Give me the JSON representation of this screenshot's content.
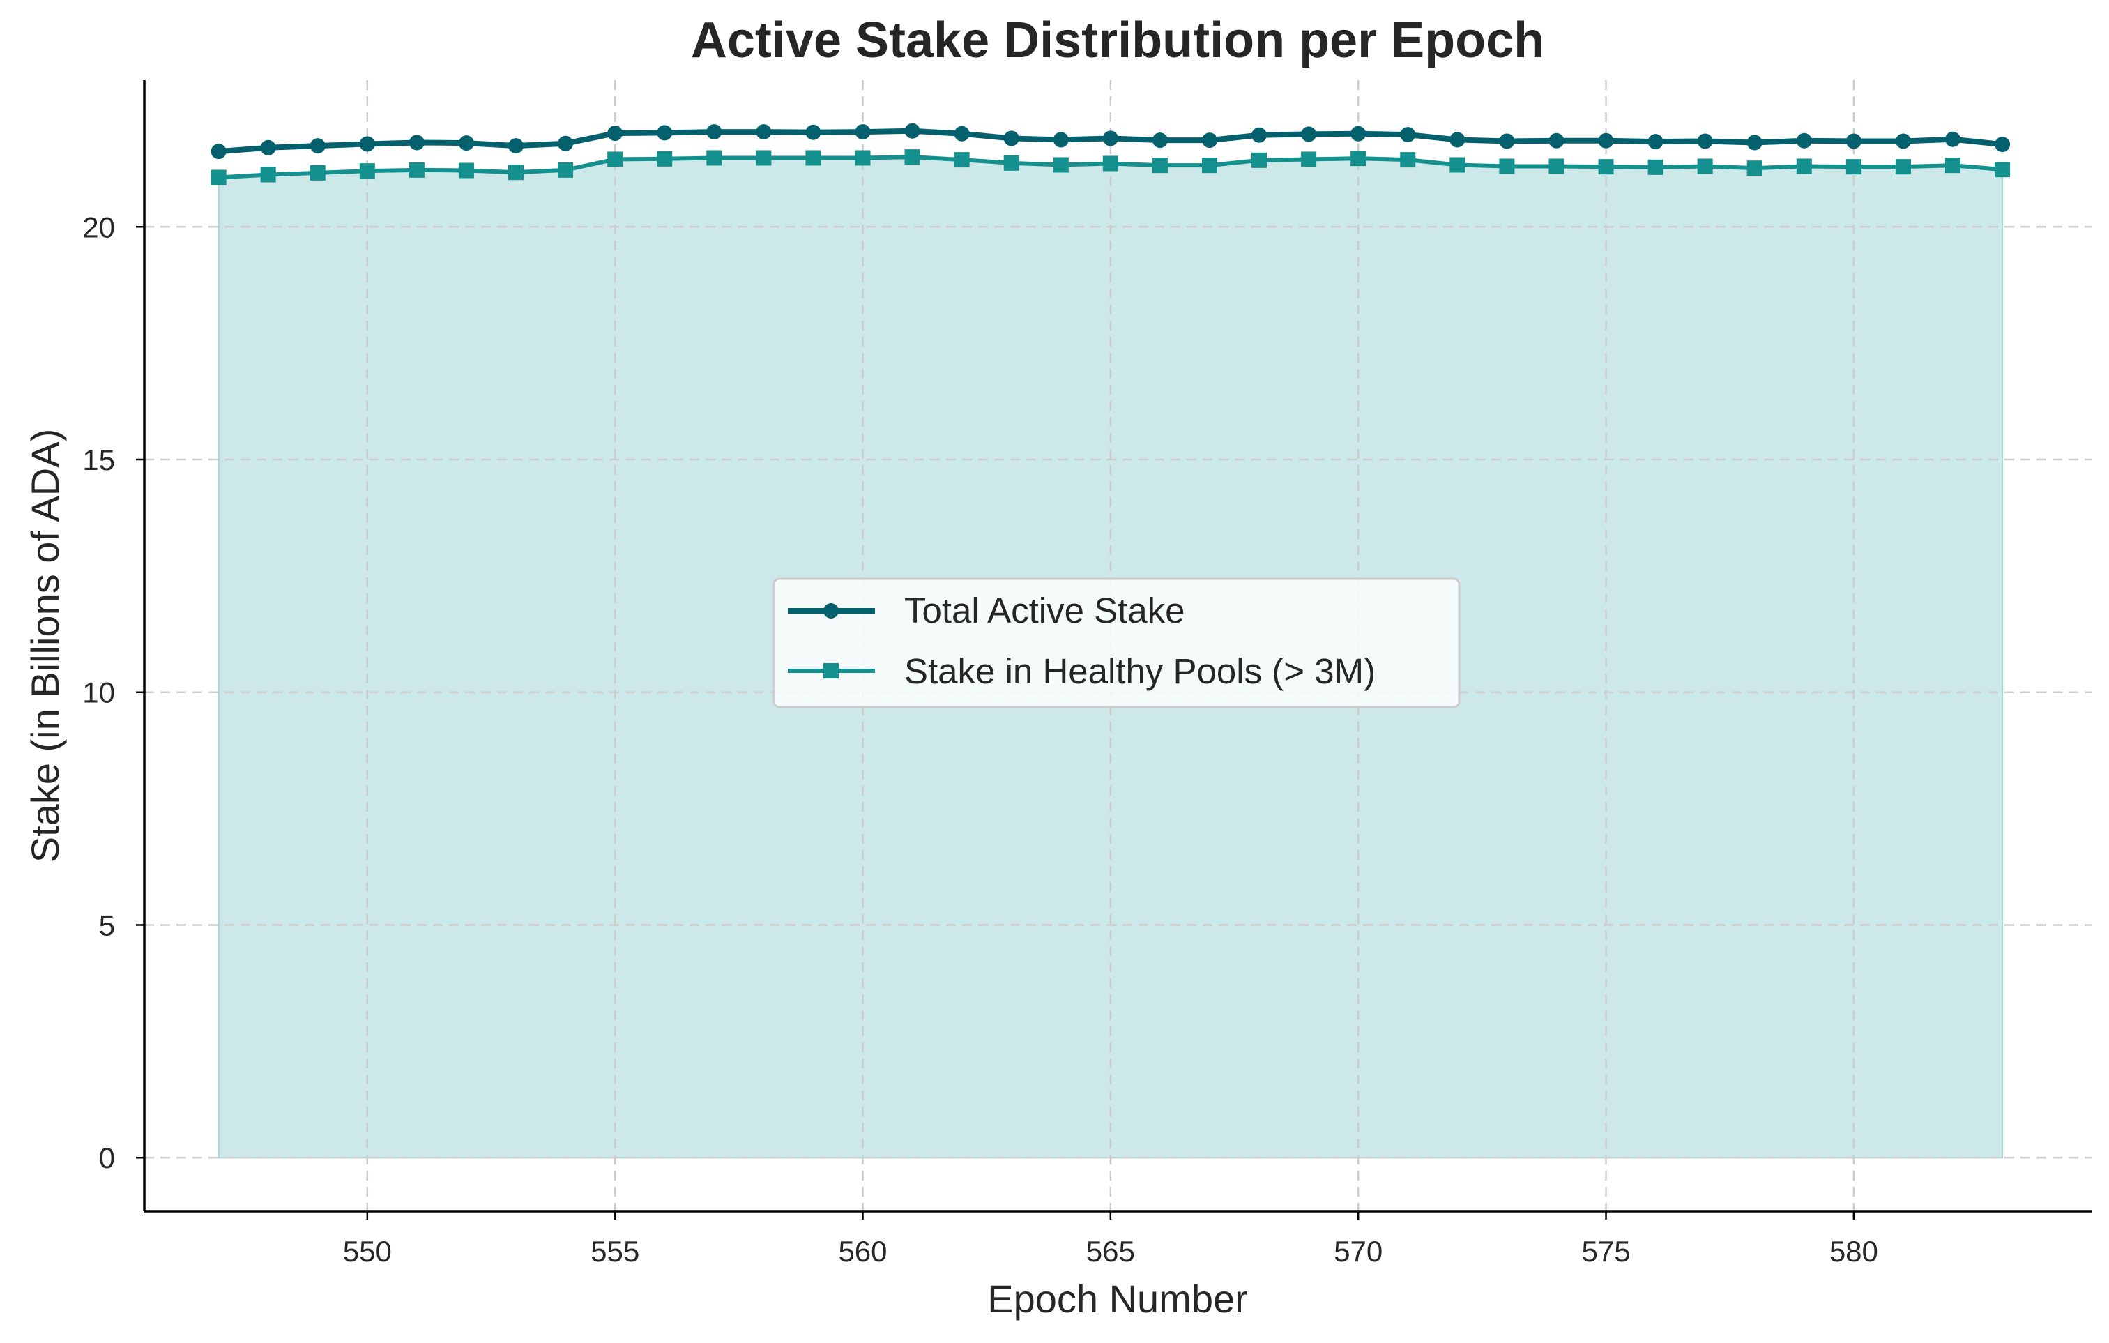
{
  "chart_data": {
    "type": "line",
    "title": "Active Stake Distribution per Epoch",
    "xlabel": "Epoch Number",
    "ylabel": "Stake (in Billions of ADA)",
    "x": [
      547,
      548,
      549,
      550,
      551,
      552,
      553,
      554,
      555,
      556,
      557,
      558,
      559,
      560,
      561,
      562,
      563,
      564,
      565,
      566,
      567,
      568,
      569,
      570,
      571,
      572,
      573,
      574,
      575,
      576,
      577,
      578,
      579,
      580,
      581,
      582,
      583
    ],
    "xlim": [
      545.5,
      584.8
    ],
    "ylim": [
      -1.15,
      23.15
    ],
    "xticks": [
      550,
      555,
      560,
      565,
      570,
      575,
      580
    ],
    "yticks": [
      0,
      5,
      10,
      15,
      20
    ],
    "grid": true,
    "legend_position": "center",
    "series": [
      {
        "name": "Total Active Stake",
        "marker": "circle",
        "color": "#05606e",
        "values": [
          21.62,
          21.7,
          21.74,
          21.78,
          21.81,
          21.8,
          21.74,
          21.79,
          22.01,
          22.02,
          22.04,
          22.04,
          22.03,
          22.04,
          22.06,
          22.0,
          21.9,
          21.87,
          21.9,
          21.86,
          21.86,
          21.97,
          21.99,
          22.0,
          21.98,
          21.87,
          21.84,
          21.85,
          21.85,
          21.83,
          21.84,
          21.81,
          21.85,
          21.84,
          21.84,
          21.88,
          21.77
        ]
      },
      {
        "name": "Stake in Healthy Pools (> 3M)",
        "marker": "square",
        "color": "#14908e",
        "fill_color": "#cce8e8",
        "values": [
          21.06,
          21.12,
          21.16,
          21.2,
          21.22,
          21.21,
          21.17,
          21.22,
          21.45,
          21.46,
          21.48,
          21.48,
          21.48,
          21.48,
          21.5,
          21.44,
          21.37,
          21.33,
          21.36,
          21.32,
          21.32,
          21.43,
          21.45,
          21.47,
          21.44,
          21.33,
          21.3,
          21.3,
          21.29,
          21.28,
          21.3,
          21.26,
          21.3,
          21.29,
          21.29,
          21.32,
          21.23
        ]
      }
    ]
  }
}
